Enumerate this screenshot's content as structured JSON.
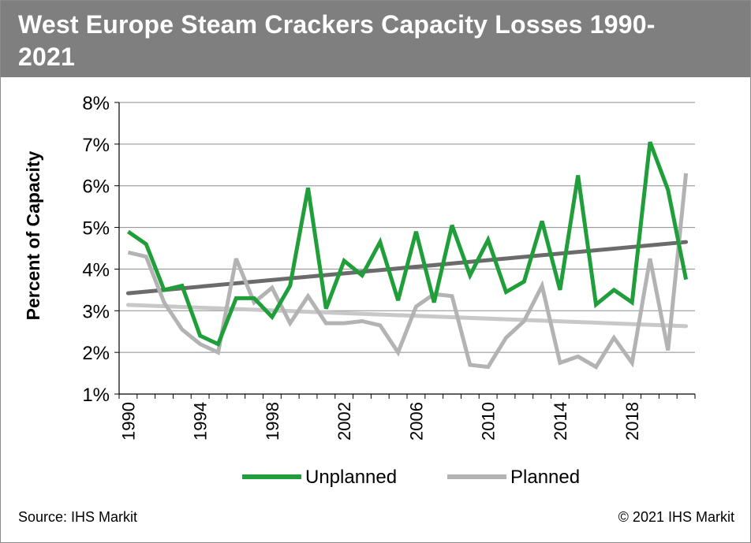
{
  "title": "West Europe Steam Crackers Capacity Losses 1990-2021",
  "title_line1": "West Europe Steam Crackers Capacity Losses 1990-",
  "title_line2": "2021",
  "source": "Source: IHS Markit",
  "copyright": "© 2021 IHS Markit",
  "colors": {
    "header_bg": "#7f7f7f",
    "unplanned": "#1f9e3a",
    "planned": "#b3b3b3",
    "trend_unplanned": "#6b6b6b",
    "trend_planned": "#c8c8c8",
    "grid": "#8c8c8c"
  },
  "chart_data": {
    "type": "line",
    "title": "West Europe Steam Crackers Capacity Losses 1990-2021",
    "ylabel": "Percent of Capacity",
    "xlabel": "",
    "ylim": [
      1,
      8
    ],
    "yticks": [
      1,
      2,
      3,
      4,
      5,
      6,
      7,
      8
    ],
    "ytick_labels": [
      "1%",
      "2%",
      "3%",
      "4%",
      "5%",
      "6%",
      "7%",
      "8%"
    ],
    "xlim": [
      1990,
      2021
    ],
    "xticks": [
      1990,
      1994,
      1998,
      2002,
      2006,
      2010,
      2014,
      2018
    ],
    "xtick_labels": [
      "1990",
      "1994",
      "1998",
      "2002",
      "2006",
      "2010",
      "2014",
      "2018"
    ],
    "grid": "horizontal",
    "legend_position": "bottom",
    "x": [
      1990,
      1991,
      1992,
      1993,
      1994,
      1995,
      1996,
      1997,
      1998,
      1999,
      2000,
      2001,
      2002,
      2003,
      2004,
      2005,
      2006,
      2007,
      2008,
      2009,
      2010,
      2011,
      2012,
      2013,
      2014,
      2015,
      2016,
      2017,
      2018,
      2019,
      2020,
      2021
    ],
    "series": [
      {
        "name": "Unplanned",
        "color": "#1f9e3a",
        "values": [
          4.9,
          4.6,
          3.5,
          3.6,
          2.4,
          2.2,
          3.3,
          3.3,
          2.85,
          3.6,
          5.95,
          3.05,
          4.2,
          3.85,
          4.65,
          3.25,
          4.9,
          3.2,
          5.05,
          3.85,
          4.7,
          3.45,
          3.7,
          5.15,
          3.5,
          6.25,
          3.15,
          3.5,
          3.2,
          7.05,
          5.9,
          3.75
        ]
      },
      {
        "name": "Planned",
        "color": "#b3b3b3",
        "values": [
          4.4,
          4.3,
          3.2,
          2.55,
          2.2,
          2.0,
          4.25,
          3.2,
          3.55,
          2.7,
          3.35,
          2.7,
          2.7,
          2.75,
          2.65,
          2.0,
          3.1,
          3.4,
          3.35,
          1.7,
          1.65,
          2.35,
          2.75,
          3.6,
          1.75,
          1.9,
          1.65,
          2.35,
          1.75,
          4.25,
          2.05,
          6.3
        ]
      }
    ],
    "trendlines": [
      {
        "of": "Unplanned",
        "start": 3.42,
        "end": 4.65,
        "color": "#6b6b6b"
      },
      {
        "of": "Planned",
        "start": 3.14,
        "end": 2.63,
        "color": "#c8c8c8"
      }
    ]
  }
}
